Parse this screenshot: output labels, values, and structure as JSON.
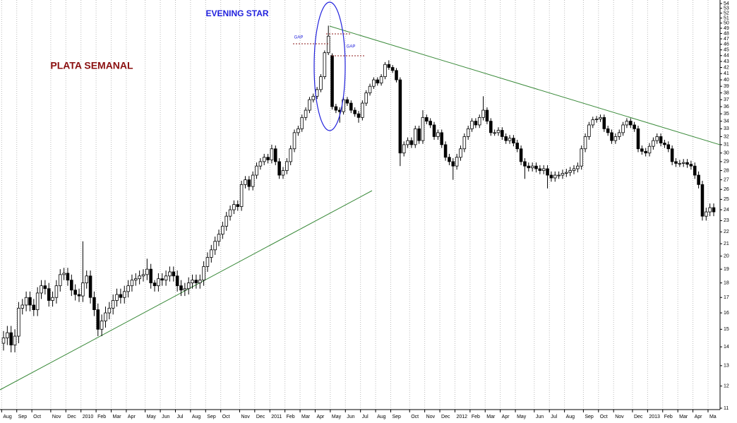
{
  "chart_data": {
    "type": "candlestick",
    "title": "PLATA SEMANAL",
    "annotations": [
      "EVENING STAR",
      "GAP",
      "GAP"
    ],
    "yscale": "log",
    "grid": "x",
    "up_color": "#ffffff",
    "down_color": "#000000",
    "ylim": [
      11,
      54
    ],
    "yticks": [
      11,
      12,
      13,
      14,
      15,
      16,
      17,
      18,
      19,
      20,
      21,
      22,
      23,
      24,
      25,
      26,
      27,
      28,
      29,
      30,
      31,
      32,
      33,
      34,
      35,
      36,
      37,
      38,
      39,
      40,
      41,
      42,
      43,
      44,
      45,
      46,
      47,
      48,
      49,
      50,
      51,
      52,
      53,
      54
    ],
    "categories": [
      "Aug",
      null,
      null,
      null,
      "Sep",
      null,
      null,
      null,
      "Oct",
      null,
      null,
      null,
      null,
      "Nov",
      null,
      null,
      null,
      "Dec",
      null,
      null,
      null,
      "2010",
      null,
      null,
      null,
      "Feb",
      null,
      null,
      null,
      "Mar",
      null,
      null,
      null,
      "Apr",
      null,
      null,
      null,
      null,
      "May",
      null,
      null,
      null,
      "Jun",
      null,
      null,
      null,
      "Jul",
      null,
      null,
      null,
      "Aug",
      null,
      null,
      null,
      "Sep",
      null,
      null,
      null,
      "Oct",
      null,
      null,
      null,
      null,
      "Nov",
      null,
      null,
      null,
      "Dec",
      null,
      null,
      null,
      "2011",
      null,
      null,
      null,
      "Feb",
      null,
      null,
      null,
      "Mar",
      null,
      null,
      null,
      "Apr",
      null,
      null,
      null,
      "May",
      null,
      null,
      null,
      "Jun",
      null,
      null,
      null,
      "Jul",
      null,
      null,
      null,
      "Aug",
      null,
      null,
      null,
      "Sep",
      null,
      null,
      null,
      null,
      "Oct",
      null,
      null,
      null,
      "Nov",
      null,
      null,
      null,
      "Dec",
      null,
      null,
      null,
      "2012",
      null,
      null,
      null,
      "Feb",
      null,
      null,
      null,
      "Mar",
      null,
      null,
      null,
      "Apr",
      null,
      null,
      null,
      "May",
      null,
      null,
      null,
      null,
      "Jun",
      null,
      null,
      null,
      "Jul",
      null,
      null,
      null,
      "Aug",
      null,
      null,
      null,
      null,
      "Sep",
      null,
      null,
      null,
      "Oct",
      null,
      null,
      null,
      "Nov",
      null,
      null,
      null,
      null,
      "Dec",
      null,
      null,
      null,
      "2013",
      null,
      null,
      null,
      "Feb",
      null,
      null,
      null,
      "Mar",
      null,
      null,
      null,
      "Apr",
      null,
      null,
      null,
      "Ma",
      null
    ],
    "open": [
      14.2,
      14.5,
      14.8,
      14.1,
      14.6,
      16.3,
      16.5,
      17.0,
      16.5,
      16.2,
      17.3,
      17.8,
      17.6,
      16.8,
      17.0,
      17.8,
      18.6,
      18.7,
      18.2,
      17.5,
      17.2,
      17.1,
      18.0,
      18.5,
      17.0,
      16.2,
      15.0,
      15.5,
      16.0,
      16.3,
      16.8,
      17.2,
      17.0,
      17.4,
      17.8,
      18.2,
      18.3,
      18.5,
      18.6,
      19.0,
      18.0,
      17.8,
      18.3,
      18.2,
      18.5,
      18.8,
      18.5,
      17.8,
      17.5,
      17.6,
      18.0,
      18.2,
      18.0,
      18.2,
      19.2,
      19.9,
      20.5,
      21.2,
      21.8,
      22.5,
      23.4,
      24.0,
      24.5,
      24.3,
      26.5,
      27.0,
      26.3,
      27.5,
      28.5,
      29.0,
      29.5,
      29.2,
      30.5,
      29.0,
      27.5,
      28.0,
      29.0,
      30.5,
      32.5,
      33.0,
      34.5,
      35.5,
      37.0,
      37.5,
      38.5,
      40.5,
      44.5,
      44.0,
      36.0,
      35.5,
      35.3,
      37.0,
      36.5,
      35.5,
      35.0,
      34.5,
      36.5,
      38.0,
      39.0,
      40.0,
      39.5,
      40.5,
      42.5,
      42.0,
      41.5,
      40.0,
      30.0,
      31.0,
      31.5,
      31.0,
      33.0,
      31.5,
      34.5,
      34.0,
      33.5,
      32.0,
      32.5,
      31.0,
      29.5,
      29.0,
      28.5,
      29.5,
      30.5,
      32.0,
      33.0,
      34.0,
      33.5,
      34.5,
      35.5,
      34.0,
      32.5,
      32.5,
      32.8,
      32.0,
      31.5,
      31.8,
      31.2,
      30.5,
      29.0,
      28.5,
      28.3,
      28.5,
      28.2,
      28.0,
      28.2,
      27.5,
      27.2,
      27.5,
      27.5,
      27.7,
      27.8,
      28.0,
      28.2,
      28.5,
      30.5,
      32.0,
      33.5,
      34.2,
      34.3,
      34.5,
      33.0,
      32.5,
      31.5,
      32.0,
      32.5,
      33.5,
      34.0,
      33.5,
      33.0,
      30.5,
      30.2,
      30.0,
      30.8,
      31.5,
      32.0,
      31.2,
      31.0,
      30.5,
      29.0,
      28.8,
      28.8,
      28.9,
      28.7,
      28.5,
      27.5,
      26.5,
      23.4,
      23.8,
      24.2
    ],
    "high": [
      14.9,
      15.2,
      15.2,
      15.0,
      16.7,
      16.9,
      17.4,
      17.4,
      16.9,
      17.7,
      18.2,
      18.2,
      18.0,
      17.4,
      18.2,
      19.0,
      19.1,
      19.1,
      18.6,
      17.9,
      17.6,
      21.2,
      18.9,
      18.9,
      17.4,
      16.6,
      15.9,
      16.4,
      16.7,
      17.2,
      17.6,
      17.6,
      17.8,
      18.2,
      18.6,
      18.7,
      18.9,
      19.0,
      19.8,
      19.4,
      18.2,
      18.7,
      18.7,
      18.9,
      19.2,
      19.2,
      18.9,
      18.2,
      18.0,
      18.4,
      18.6,
      18.6,
      18.6,
      19.6,
      20.3,
      20.9,
      21.6,
      22.2,
      22.9,
      23.8,
      24.4,
      24.9,
      24.9,
      26.9,
      27.4,
      27.4,
      27.9,
      28.9,
      29.4,
      29.9,
      29.9,
      31.0,
      30.9,
      29.4,
      28.4,
      29.4,
      30.9,
      32.9,
      33.4,
      34.9,
      35.9,
      37.4,
      37.9,
      38.9,
      40.9,
      44.9,
      49.5,
      44.4,
      36.4,
      35.9,
      37.4,
      37.4,
      36.9,
      35.9,
      35.4,
      36.9,
      38.4,
      39.4,
      40.4,
      40.4,
      40.9,
      42.9,
      43.2,
      42.4,
      41.9,
      40.4,
      31.4,
      31.9,
      31.9,
      33.4,
      33.4,
      35.5,
      34.9,
      34.4,
      33.9,
      32.9,
      32.9,
      31.4,
      29.9,
      29.4,
      29.9,
      30.9,
      32.4,
      33.4,
      34.4,
      34.4,
      34.9,
      37.5,
      35.9,
      34.4,
      32.9,
      33.2,
      33.2,
      32.4,
      32.2,
      32.2,
      31.6,
      30.9,
      29.4,
      28.9,
      28.9,
      28.9,
      28.6,
      28.6,
      28.6,
      27.9,
      27.9,
      27.9,
      28.1,
      28.2,
      28.4,
      28.6,
      28.9,
      30.9,
      32.4,
      33.9,
      34.6,
      34.7,
      34.9,
      34.9,
      33.4,
      32.9,
      32.4,
      32.9,
      33.9,
      34.4,
      34.4,
      33.9,
      33.4,
      30.9,
      30.6,
      31.2,
      31.9,
      32.4,
      32.4,
      31.6,
      31.4,
      30.9,
      29.4,
      29.2,
      29.3,
      29.3,
      29.1,
      28.9,
      27.9,
      26.9,
      24.2,
      24.6,
      24.6
    ],
    "low": [
      13.8,
      14.1,
      13.7,
      13.7,
      14.2,
      15.9,
      16.1,
      16.1,
      15.8,
      15.8,
      16.9,
      17.2,
      16.4,
      16.4,
      16.6,
      17.4,
      18.2,
      17.8,
      17.1,
      16.8,
      16.7,
      16.7,
      17.6,
      16.6,
      15.8,
      14.6,
      14.6,
      15.1,
      15.6,
      15.9,
      16.4,
      16.6,
      16.6,
      17.0,
      17.4,
      17.8,
      17.9,
      18.1,
      18.2,
      17.6,
      17.4,
      17.4,
      17.8,
      17.8,
      18.1,
      18.1,
      17.4,
      17.1,
      17.1,
      17.2,
      17.6,
      17.6,
      17.6,
      17.8,
      18.8,
      19.5,
      20.1,
      20.8,
      21.4,
      22.1,
      23.0,
      23.6,
      23.9,
      23.9,
      26.1,
      25.9,
      25.9,
      27.1,
      28.1,
      28.6,
      28.8,
      28.8,
      28.6,
      27.1,
      27.1,
      27.6,
      28.6,
      30.1,
      32.1,
      32.6,
      34.1,
      35.1,
      36.6,
      37.1,
      38.1,
      40.1,
      44.1,
      35.6,
      35.1,
      33.8,
      34.9,
      36.1,
      35.1,
      34.6,
      33.8,
      34.1,
      36.1,
      37.6,
      38.6,
      39.1,
      39.1,
      40.1,
      41.6,
      41.1,
      39.6,
      28.5,
      29.6,
      30.6,
      30.6,
      30.6,
      31.1,
      31.1,
      33.6,
      33.1,
      31.6,
      31.6,
      30.6,
      29.1,
      28.6,
      27.0,
      28.1,
      29.1,
      30.1,
      31.6,
      32.6,
      33.1,
      33.1,
      34.1,
      33.6,
      32.1,
      32.1,
      32.1,
      31.6,
      31.1,
      31.1,
      30.8,
      30.1,
      28.6,
      27.1,
      27.9,
      27.9,
      27.8,
      27.6,
      27.6,
      26.1,
      26.8,
      26.8,
      27.1,
      27.1,
      27.3,
      27.4,
      27.6,
      27.8,
      28.1,
      30.1,
      31.6,
      33.1,
      33.8,
      33.9,
      32.6,
      32.1,
      31.1,
      31.1,
      31.6,
      32.1,
      33.1,
      33.1,
      32.6,
      30.1,
      29.8,
      29.6,
      29.6,
      30.4,
      31.1,
      30.8,
      30.6,
      30.1,
      28.6,
      28.4,
      28.4,
      28.4,
      28.3,
      28.1,
      27.1,
      26.1,
      23.0,
      23.0,
      23.4,
      23.4
    ],
    "close": [
      14.5,
      14.8,
      14.1,
      14.6,
      16.3,
      16.5,
      17.0,
      16.5,
      16.2,
      17.3,
      17.8,
      17.6,
      16.8,
      17.0,
      17.8,
      18.6,
      18.7,
      18.2,
      17.5,
      17.2,
      17.1,
      18.0,
      18.5,
      17.0,
      16.2,
      15.0,
      15.5,
      16.0,
      16.3,
      16.8,
      17.2,
      17.0,
      17.4,
      17.8,
      18.2,
      18.3,
      18.5,
      18.6,
      19.0,
      18.0,
      17.8,
      18.3,
      18.2,
      18.5,
      18.8,
      18.5,
      17.8,
      17.5,
      17.6,
      18.0,
      18.2,
      18.0,
      18.2,
      19.2,
      19.9,
      20.5,
      21.2,
      21.8,
      22.5,
      23.4,
      24.0,
      24.5,
      24.3,
      26.5,
      27.0,
      26.3,
      27.5,
      28.5,
      29.0,
      29.5,
      29.2,
      30.5,
      29.0,
      27.5,
      28.0,
      29.0,
      30.5,
      32.5,
      33.0,
      34.5,
      35.5,
      37.0,
      37.5,
      38.5,
      40.5,
      44.5,
      47.5,
      36.0,
      35.5,
      35.3,
      37.0,
      36.5,
      35.5,
      35.0,
      34.5,
      36.5,
      38.0,
      39.0,
      40.0,
      39.5,
      40.5,
      42.5,
      42.0,
      41.5,
      40.0,
      30.0,
      31.0,
      31.5,
      31.0,
      33.0,
      31.5,
      34.5,
      34.0,
      33.5,
      32.0,
      32.5,
      31.0,
      29.5,
      29.0,
      28.5,
      29.5,
      30.5,
      32.0,
      33.0,
      34.0,
      33.5,
      34.5,
      35.5,
      34.0,
      32.5,
      32.5,
      32.8,
      32.0,
      31.5,
      31.8,
      31.2,
      30.5,
      29.0,
      28.5,
      28.3,
      28.5,
      28.2,
      28.0,
      28.2,
      27.5,
      27.2,
      27.5,
      27.5,
      27.7,
      27.8,
      28.0,
      28.2,
      28.5,
      30.5,
      32.0,
      33.5,
      34.2,
      34.3,
      34.5,
      33.0,
      32.5,
      31.5,
      32.0,
      32.5,
      33.5,
      34.0,
      33.5,
      33.0,
      30.5,
      30.2,
      30.0,
      30.8,
      31.5,
      32.0,
      31.2,
      31.0,
      30.5,
      29.0,
      28.8,
      28.8,
      28.9,
      28.7,
      28.5,
      27.5,
      26.5,
      23.4,
      23.8,
      24.2,
      23.8
    ]
  }
}
